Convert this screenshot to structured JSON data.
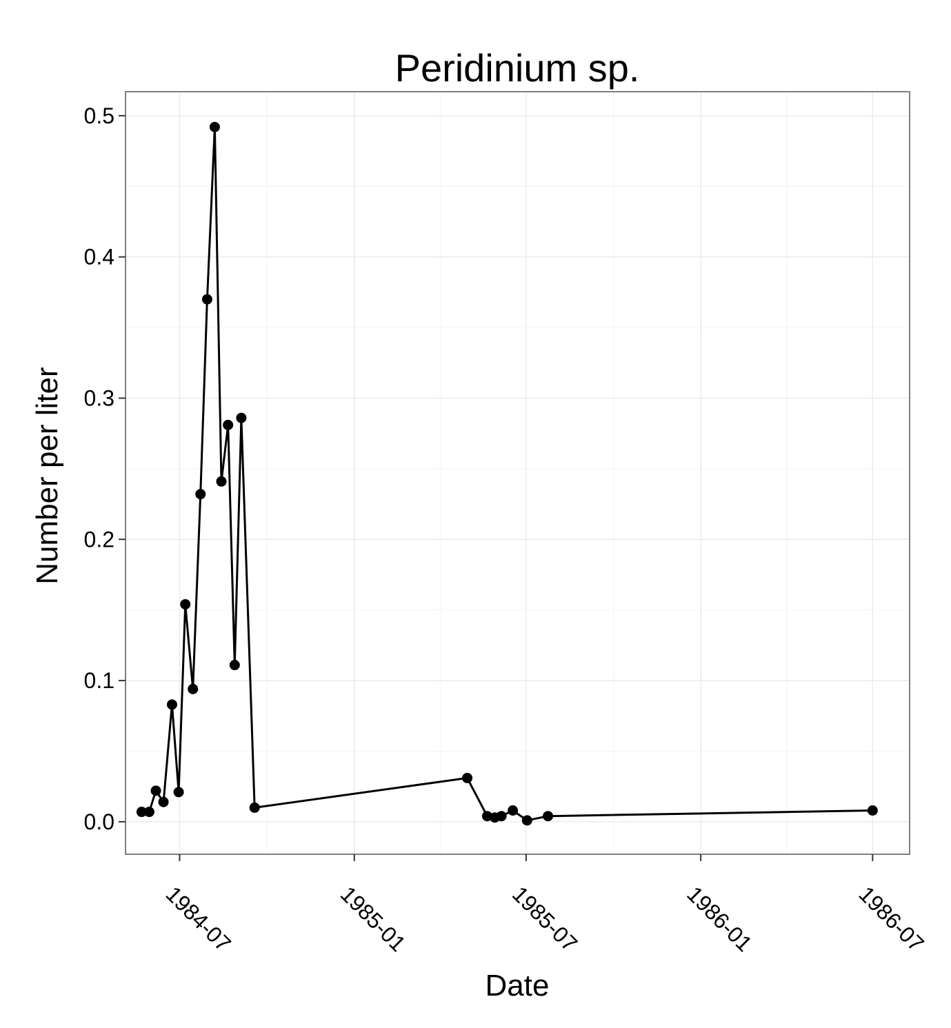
{
  "chart_data": {
    "type": "line",
    "title": "Peridinium sp.",
    "xlabel": "Date",
    "ylabel": "Number per liter",
    "x_tick_labels": [
      "1984-07",
      "1985-01",
      "1985-07",
      "1986-01",
      "1986-07"
    ],
    "y_tick_labels": [
      "0.0",
      "0.1",
      "0.2",
      "0.3",
      "0.4",
      "0.5"
    ],
    "y_ticks": [
      0.0,
      0.1,
      0.2,
      0.3,
      0.4,
      0.5
    ],
    "xlim": [
      "1984-05-05",
      "1986-08-09"
    ],
    "ylim": [
      -0.023,
      0.517
    ],
    "grid": true,
    "markers": true,
    "line_color": "#000000",
    "grid_color": "#ebebeb",
    "series": [
      {
        "x": [
          "1984-05-22",
          "1984-05-30",
          "1984-06-06",
          "1984-06-14",
          "1984-06-23",
          "1984-06-30",
          "1984-07-07",
          "1984-07-15",
          "1984-07-23",
          "1984-07-30",
          "1984-08-07",
          "1984-08-14",
          "1984-08-21",
          "1984-08-28",
          "1984-09-04",
          "1984-09-18",
          "1985-04-30",
          "1985-05-21",
          "1985-05-29",
          "1985-06-05",
          "1985-06-17",
          "1985-07-02",
          "1985-07-24",
          "1986-07-01"
        ],
        "y": [
          0.007,
          0.007,
          0.022,
          0.014,
          0.083,
          0.021,
          0.154,
          0.094,
          0.232,
          0.37,
          0.492,
          0.241,
          0.281,
          0.111,
          0.286,
          0.01,
          0.031,
          0.004,
          0.003,
          0.004,
          0.008,
          0.001,
          0.004,
          0.008
        ]
      }
    ]
  }
}
